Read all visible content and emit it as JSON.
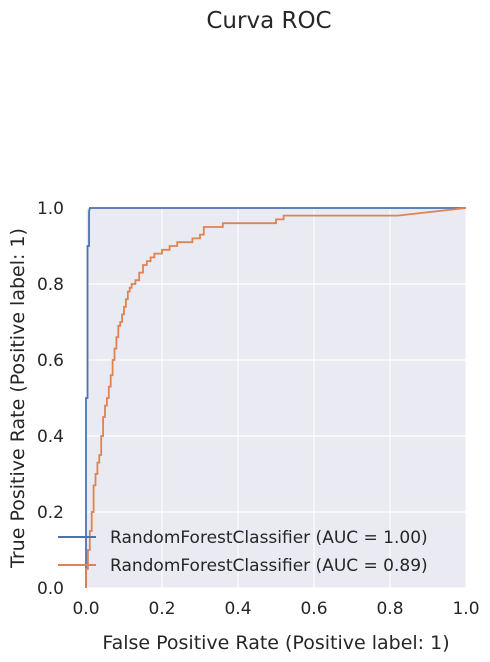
{
  "chart_data": {
    "type": "line",
    "title": "Curva ROC",
    "xlabel": "False Positive Rate (Positive label: 1)",
    "ylabel": "True Positive Rate (Positive label: 1)",
    "xlim": [
      0.0,
      1.0
    ],
    "ylim": [
      0.0,
      1.0
    ],
    "xticks": [
      "0.0",
      "0.2",
      "0.4",
      "0.6",
      "0.8",
      "1.0"
    ],
    "yticks": [
      "0.0",
      "0.2",
      "0.4",
      "0.6",
      "0.8",
      "1.0"
    ],
    "grid": true,
    "legend_position": "lower-right",
    "series": [
      {
        "name": "RandomForestClassifier (AUC = 1.00)",
        "color": "#4c72b0",
        "x": [
          0.0,
          0.0,
          0.004,
          0.004,
          0.008,
          0.008,
          0.01,
          1.0
        ],
        "y": [
          0.0,
          0.5,
          0.5,
          0.9,
          0.9,
          0.99,
          1.0,
          1.0
        ]
      },
      {
        "name": "RandomForestClassifier (AUC = 0.89)",
        "color": "#dd8452",
        "x": [
          0.0,
          0.0,
          0.005,
          0.005,
          0.01,
          0.01,
          0.015,
          0.015,
          0.02,
          0.02,
          0.025,
          0.025,
          0.03,
          0.03,
          0.035,
          0.035,
          0.04,
          0.04,
          0.045,
          0.045,
          0.05,
          0.05,
          0.055,
          0.055,
          0.06,
          0.06,
          0.065,
          0.065,
          0.07,
          0.07,
          0.075,
          0.075,
          0.08,
          0.08,
          0.085,
          0.085,
          0.09,
          0.09,
          0.095,
          0.095,
          0.1,
          0.1,
          0.105,
          0.105,
          0.11,
          0.11,
          0.115,
          0.115,
          0.12,
          0.12,
          0.13,
          0.13,
          0.14,
          0.14,
          0.15,
          0.15,
          0.16,
          0.16,
          0.17,
          0.17,
          0.18,
          0.18,
          0.2,
          0.2,
          0.22,
          0.22,
          0.24,
          0.24,
          0.28,
          0.28,
          0.3,
          0.3,
          0.31,
          0.31,
          0.36,
          0.36,
          0.4,
          0.4,
          0.5,
          0.5,
          0.52,
          0.52,
          0.72,
          0.72,
          0.82,
          1.0
        ],
        "y": [
          0.0,
          0.05,
          0.05,
          0.1,
          0.1,
          0.15,
          0.15,
          0.2,
          0.2,
          0.27,
          0.27,
          0.3,
          0.3,
          0.33,
          0.33,
          0.35,
          0.35,
          0.4,
          0.4,
          0.45,
          0.45,
          0.48,
          0.48,
          0.5,
          0.5,
          0.53,
          0.53,
          0.56,
          0.56,
          0.6,
          0.6,
          0.63,
          0.63,
          0.66,
          0.66,
          0.69,
          0.69,
          0.7,
          0.7,
          0.72,
          0.72,
          0.74,
          0.74,
          0.76,
          0.76,
          0.78,
          0.78,
          0.79,
          0.79,
          0.8,
          0.8,
          0.81,
          0.81,
          0.83,
          0.83,
          0.85,
          0.85,
          0.86,
          0.86,
          0.87,
          0.87,
          0.88,
          0.88,
          0.89,
          0.89,
          0.9,
          0.9,
          0.91,
          0.91,
          0.92,
          0.92,
          0.93,
          0.93,
          0.95,
          0.95,
          0.96,
          0.96,
          0.96,
          0.96,
          0.97,
          0.97,
          0.98,
          0.98,
          0.98,
          0.98,
          1.0
        ]
      }
    ]
  },
  "colors": {
    "plot_background": "#eaeaf2",
    "grid": "#ffffff",
    "text": "#262626"
  }
}
